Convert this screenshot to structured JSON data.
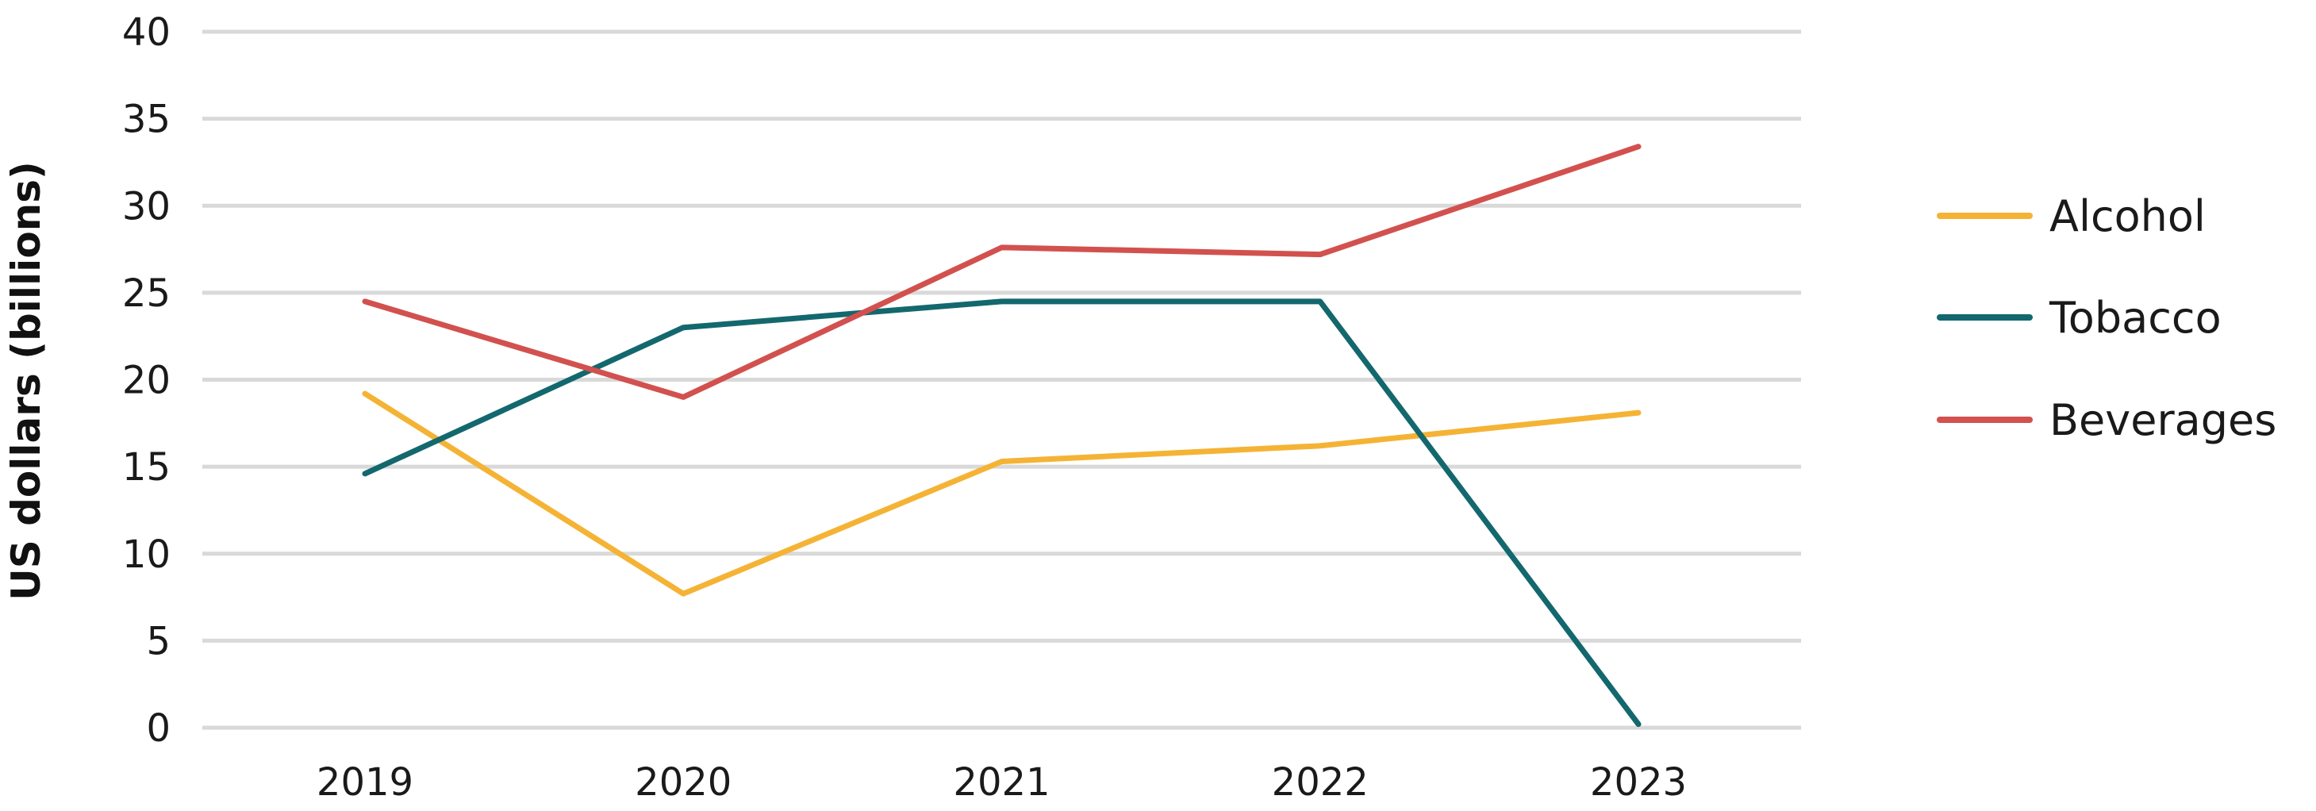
{
  "chart_data": {
    "type": "line",
    "title": "",
    "xlabel": "",
    "ylabel": "US dollars (billions)",
    "categories": [
      "2019",
      "2020",
      "2021",
      "2022",
      "2023"
    ],
    "ylim": [
      0,
      40
    ],
    "yticks": [
      0,
      5,
      10,
      15,
      20,
      25,
      30,
      35,
      40
    ],
    "grid": true,
    "legend": "right",
    "series": [
      {
        "name": "Alcohol",
        "color": "#F5B335",
        "values": [
          19.2,
          7.7,
          15.3,
          16.2,
          18.1
        ]
      },
      {
        "name": "Tobacco",
        "color": "#13686E",
        "values": [
          14.6,
          23.0,
          24.5,
          24.5,
          0.2
        ]
      },
      {
        "name": "Beverages",
        "color": "#D2514E",
        "values": [
          24.5,
          19.0,
          27.6,
          27.2,
          33.4
        ]
      }
    ]
  }
}
